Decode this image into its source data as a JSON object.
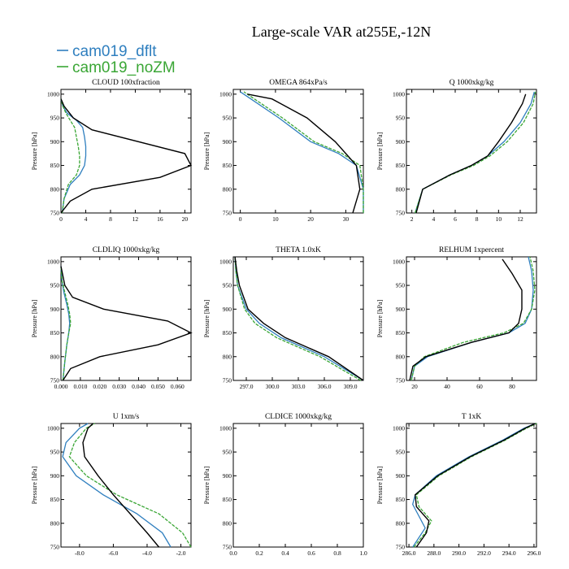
{
  "title": "Large-scale VAR at255E,-12N",
  "colors": {
    "series1": "#2f7fbf",
    "series2": "#3aa635",
    "series3": "#000000"
  },
  "legend": [
    "cam019_dflt",
    "cam019_noZM"
  ],
  "chart_data": [
    {
      "type": "line",
      "title": "CLOUD  100xfraction",
      "ylabel": "Pressure [hPa]",
      "xlim": [
        0,
        21
      ],
      "ylim": [
        1010,
        750
      ],
      "y_inverted": true,
      "xticks": [
        0,
        4,
        8,
        12,
        16,
        20
      ],
      "xticklabels": [
        "0",
        "4",
        "8",
        "12",
        "16",
        "20"
      ],
      "yticks": [
        750,
        800,
        850,
        900,
        950,
        1000
      ],
      "yticklabels": [
        "750",
        "800",
        "850",
        "900",
        "950",
        "1000"
      ],
      "series": [
        {
          "name": "cam019_dflt",
          "x": [
            0.2,
            0.5,
            1.5,
            3,
            3.8,
            4,
            4,
            3.8,
            3.5,
            2.5,
            1,
            0.3,
            0
          ],
          "y": [
            750,
            780,
            810,
            830,
            850,
            870,
            890,
            910,
            930,
            945,
            960,
            975,
            990
          ]
        },
        {
          "name": "cam019_noZM",
          "x": [
            0.2,
            0.5,
            1.2,
            2.5,
            3,
            3,
            2.8,
            2.5,
            2.2,
            1.5,
            0.8,
            0.3,
            0
          ],
          "y": [
            750,
            780,
            810,
            830,
            850,
            870,
            890,
            910,
            930,
            945,
            960,
            975,
            990
          ]
        },
        {
          "name": "",
          "x": [
            0,
            1.5,
            5,
            16,
            21,
            20,
            5,
            2,
            0.5,
            0
          ],
          "y": [
            750,
            775,
            800,
            825,
            850,
            875,
            925,
            950,
            975,
            990
          ]
        }
      ]
    },
    {
      "type": "line",
      "title": "OMEGA  864xPa/s",
      "ylabel": "Pressure [hPa]",
      "xlim": [
        -2,
        35
      ],
      "ylim": [
        1010,
        750
      ],
      "y_inverted": true,
      "xticks": [
        0,
        10,
        20,
        30
      ],
      "xticklabels": [
        "0",
        "10",
        "20",
        "30"
      ],
      "yticks": [
        750,
        800,
        850,
        900,
        950,
        1000
      ],
      "yticklabels": [
        "750",
        "800",
        "850",
        "900",
        "950",
        "1000"
      ],
      "series": [
        {
          "name": "cam019_dflt",
          "x": [
            35,
            35,
            33,
            28,
            20,
            11,
            3,
            0
          ],
          "y": [
            750,
            800,
            850,
            875,
            900,
            950,
            990,
            1005
          ]
        },
        {
          "name": "cam019_noZM",
          "x": [
            35,
            35,
            34,
            29,
            21,
            12,
            4,
            1
          ],
          "y": [
            750,
            800,
            850,
            875,
            900,
            950,
            990,
            1005
          ]
        },
        {
          "name": "",
          "x": [
            32,
            34,
            33,
            30,
            27,
            19,
            9,
            2
          ],
          "y": [
            750,
            800,
            850,
            875,
            900,
            950,
            990,
            1000
          ]
        }
      ]
    },
    {
      "type": "line",
      "title": "Q  1000xkg/kg",
      "ylabel": "Pressure [hPa]",
      "xlim": [
        1.5,
        13.5
      ],
      "ylim": [
        1010,
        750
      ],
      "y_inverted": true,
      "xticks": [
        2,
        4,
        6,
        8,
        10,
        12
      ],
      "xticklabels": [
        "2",
        "4",
        "6",
        "8",
        "10",
        "12"
      ],
      "yticks": [
        750,
        800,
        850,
        900,
        950,
        1000
      ],
      "yticklabels": [
        "750",
        "800",
        "850",
        "900",
        "950",
        "1000"
      ],
      "series": [
        {
          "name": "cam019_dflt",
          "x": [
            2.3,
            3,
            5.5,
            7.5,
            9,
            10.5,
            12,
            13,
            13.3
          ],
          "y": [
            750,
            800,
            830,
            850,
            870,
            900,
            940,
            980,
            1005
          ]
        },
        {
          "name": "cam019_noZM",
          "x": [
            2.3,
            3,
            5.6,
            7.7,
            9.2,
            10.8,
            12.3,
            13.2,
            13.4
          ],
          "y": [
            750,
            800,
            830,
            850,
            870,
            900,
            940,
            980,
            1005
          ]
        },
        {
          "name": "",
          "x": [
            2.4,
            3,
            5.5,
            7.5,
            9,
            10,
            11.2,
            12.2,
            12.5
          ],
          "y": [
            750,
            800,
            830,
            850,
            870,
            900,
            940,
            980,
            1000
          ]
        }
      ]
    },
    {
      "type": "line",
      "title": "CLDLIQ  1000xkg/kg",
      "ylabel": "Pressure [hPa]",
      "xlim": [
        0,
        0.067
      ],
      "ylim": [
        1010,
        750
      ],
      "y_inverted": true,
      "xticks": [
        0,
        0.01,
        0.02,
        0.03,
        0.04,
        0.05,
        0.06
      ],
      "xticklabels": [
        "0.000",
        "0.010",
        "0.020",
        "0.030",
        "0.040",
        "0.050",
        "0.060"
      ],
      "yticks": [
        750,
        800,
        850,
        900,
        950,
        1000
      ],
      "yticklabels": [
        "750",
        "800",
        "850",
        "900",
        "950",
        "1000"
      ],
      "series": [
        {
          "name": "cam019_dflt",
          "x": [
            0.001,
            0.002,
            0.003,
            0.004,
            0.0045,
            0.004,
            0.003,
            0.0015,
            0.0005,
            0
          ],
          "y": [
            750,
            790,
            825,
            850,
            870,
            890,
            910,
            935,
            960,
            990
          ]
        },
        {
          "name": "cam019_noZM",
          "x": [
            0.001,
            0.002,
            0.003,
            0.004,
            0.005,
            0.0045,
            0.0035,
            0.002,
            0.0005,
            0
          ],
          "y": [
            750,
            790,
            825,
            850,
            870,
            890,
            910,
            935,
            960,
            990
          ]
        },
        {
          "name": "",
          "x": [
            0.001,
            0.005,
            0.02,
            0.05,
            0.067,
            0.055,
            0.022,
            0.006,
            0.002,
            0
          ],
          "y": [
            750,
            775,
            800,
            825,
            850,
            875,
            900,
            925,
            950,
            990
          ]
        }
      ]
    },
    {
      "type": "line",
      "title": "THETA  1.0xK",
      "ylabel": "Pressure [hPa]",
      "xlim": [
        295.5,
        310.5
      ],
      "ylim": [
        1010,
        750
      ],
      "y_inverted": true,
      "xticks": [
        297,
        300,
        303,
        306,
        309
      ],
      "xticklabels": [
        "297.0",
        "300.0",
        "303.0",
        "306.0",
        "309.0"
      ],
      "yticks": [
        750,
        800,
        850,
        900,
        950,
        1000
      ],
      "yticklabels": [
        "750",
        "800",
        "850",
        "900",
        "950",
        "1000"
      ],
      "series": [
        {
          "name": "cam019_dflt",
          "x": [
            310.5,
            306,
            301,
            298.5,
            297,
            296,
            295.8,
            295.7
          ],
          "y": [
            750,
            800,
            840,
            870,
            900,
            950,
            980,
            1010
          ]
        },
        {
          "name": "cam019_noZM",
          "x": [
            310.2,
            305.5,
            300.5,
            298,
            296.8,
            296,
            295.8,
            295.7
          ],
          "y": [
            750,
            800,
            840,
            870,
            900,
            950,
            980,
            1010
          ]
        },
        {
          "name": "",
          "x": [
            310.5,
            306.5,
            301.5,
            299,
            297.2,
            296.2,
            295.9,
            295.7
          ],
          "y": [
            750,
            800,
            840,
            870,
            900,
            950,
            980,
            1010
          ]
        }
      ]
    },
    {
      "type": "line",
      "title": "RELHUM  1xpercent",
      "ylabel": "Pressure [hPa]",
      "xlim": [
        15,
        95
      ],
      "ylim": [
        1010,
        750
      ],
      "y_inverted": true,
      "xticks": [
        20,
        40,
        60,
        80
      ],
      "xticklabels": [
        "20",
        "40",
        "60",
        "80"
      ],
      "yticks": [
        750,
        800,
        850,
        900,
        950,
        1000
      ],
      "yticklabels": [
        "750",
        "800",
        "850",
        "900",
        "950",
        "1000"
      ],
      "series": [
        {
          "name": "cam019_dflt",
          "x": [
            18,
            20,
            28,
            55,
            78,
            88,
            92,
            93,
            92,
            90
          ],
          "y": [
            750,
            780,
            800,
            830,
            850,
            870,
            900,
            940,
            980,
            1010
          ]
        },
        {
          "name": "cam019_noZM",
          "x": [
            18,
            20,
            26,
            50,
            75,
            87,
            92,
            94,
            93,
            91
          ],
          "y": [
            750,
            780,
            800,
            830,
            850,
            870,
            900,
            940,
            980,
            1010
          ]
        },
        {
          "name": "",
          "x": [
            17,
            19,
            27,
            55,
            78,
            84,
            86,
            86,
            80,
            74
          ],
          "y": [
            750,
            780,
            800,
            830,
            850,
            870,
            900,
            940,
            975,
            1005
          ]
        }
      ]
    },
    {
      "type": "line",
      "title": "U  1xm/s",
      "ylabel": "Pressure [hPa]",
      "xlim": [
        -9.1,
        -1.4
      ],
      "ylim": [
        1010,
        750
      ],
      "y_inverted": true,
      "xticks": [
        -8,
        -6,
        -4,
        -2
      ],
      "xticklabels": [
        "-8.0",
        "-6.0",
        "-4.0",
        "-2.0"
      ],
      "yticks": [
        750,
        800,
        850,
        900,
        950,
        1000
      ],
      "yticklabels": [
        "750",
        "800",
        "850",
        "900",
        "950",
        "1000"
      ],
      "series": [
        {
          "name": "cam019_dflt",
          "x": [
            -2.6,
            -3.1,
            -4.6,
            -6.6,
            -8.2,
            -9,
            -8.8,
            -8,
            -7.5
          ],
          "y": [
            750,
            780,
            820,
            860,
            900,
            940,
            970,
            1000,
            1010
          ]
        },
        {
          "name": "cam019_noZM",
          "x": [
            -1.4,
            -1.9,
            -3.3,
            -5.8,
            -7.6,
            -8.6,
            -8.3,
            -7.6,
            -7.1
          ],
          "y": [
            750,
            780,
            820,
            860,
            900,
            940,
            970,
            1000,
            1010
          ]
        },
        {
          "name": "",
          "x": [
            -3.3,
            -4,
            -5,
            -6,
            -6.9,
            -7.7,
            -7.8,
            -7.5,
            -7.2
          ],
          "y": [
            750,
            780,
            820,
            860,
            900,
            940,
            970,
            1000,
            1010
          ]
        }
      ]
    },
    {
      "type": "line",
      "title": "CLDICE  1000xkg/kg",
      "ylabel": "Pressure [hPa]",
      "xlim": [
        0,
        1
      ],
      "ylim": [
        1010,
        750
      ],
      "y_inverted": true,
      "xticks": [
        0,
        0.2,
        0.4,
        0.6,
        0.8,
        1.0
      ],
      "xticklabels": [
        "0.0",
        "0.2",
        "0.4",
        "0.6",
        "0.8",
        "1.0"
      ],
      "yticks": [
        750,
        800,
        850,
        900,
        950,
        1000
      ],
      "yticklabels": [
        "750",
        "800",
        "850",
        "900",
        "950",
        "1000"
      ],
      "series": []
    },
    {
      "type": "line",
      "title": "T  1xK",
      "ylabel": "Pressure [hPa]",
      "xlim": [
        285.8,
        296.2
      ],
      "ylim": [
        1010,
        750
      ],
      "y_inverted": true,
      "xticks": [
        286,
        288,
        290,
        292,
        294,
        296
      ],
      "xticklabels": [
        "286.0",
        "288.0",
        "290.0",
        "292.0",
        "294.0",
        "296.0"
      ],
      "yticks": [
        750,
        800,
        850,
        900,
        950,
        1000
      ],
      "yticklabels": [
        "750",
        "800",
        "850",
        "900",
        "950",
        "1000"
      ],
      "series": [
        {
          "name": "cam019_dflt",
          "x": [
            286.3,
            287.3,
            286.8,
            286.3,
            286.5,
            288.2,
            290.8,
            293.5,
            295.2,
            296.1
          ],
          "y": [
            750,
            790,
            815,
            840,
            860,
            900,
            940,
            975,
            1000,
            1010
          ]
        },
        {
          "name": "cam019_noZM",
          "x": [
            286.4,
            287.3,
            287.8,
            286.8,
            286.6,
            288.4,
            291,
            293.7,
            295.4,
            296.2
          ],
          "y": [
            750,
            780,
            805,
            835,
            860,
            900,
            940,
            975,
            1000,
            1010
          ]
        },
        {
          "name": "",
          "x": [
            286.6,
            287.4,
            287.6,
            286.6,
            286.5,
            288.3,
            290.9,
            293.6,
            295.3,
            296.1
          ],
          "y": [
            750,
            780,
            805,
            835,
            860,
            900,
            940,
            975,
            1000,
            1010
          ]
        }
      ]
    }
  ]
}
